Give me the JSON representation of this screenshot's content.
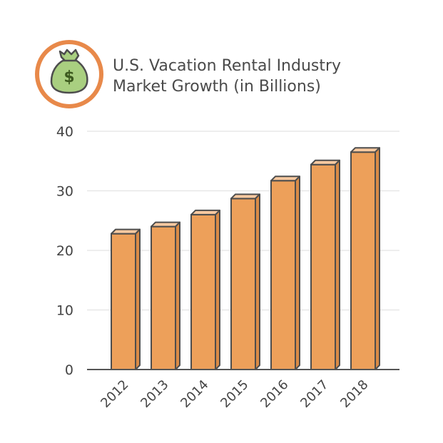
{
  "chart_data": {
    "type": "bar",
    "title_lines": [
      "U.S. Vacation Rental Industry",
      "Market Growth (in Billions)"
    ],
    "categories": [
      "2012",
      "2013",
      "2014",
      "2015",
      "2016",
      "2017",
      "2018"
    ],
    "values": [
      22.8,
      24.0,
      26.0,
      28.7,
      31.7,
      34.4,
      36.5
    ],
    "yticks": [
      "0",
      "10",
      "20",
      "30",
      "40"
    ],
    "ylim": [
      0,
      40
    ],
    "grid": true,
    "colors": {
      "bar_front": "#eda05a",
      "bar_top": "#f8c9a0",
      "bar_side": "#d98a45",
      "bar_outline": "#4d4d4d",
      "icon_ring": "#e8894a",
      "icon_bag": "#a9cf80",
      "icon_symbol": "#3d5a1f"
    },
    "icon": {
      "name": "money-bag-icon",
      "symbol": "$"
    }
  }
}
